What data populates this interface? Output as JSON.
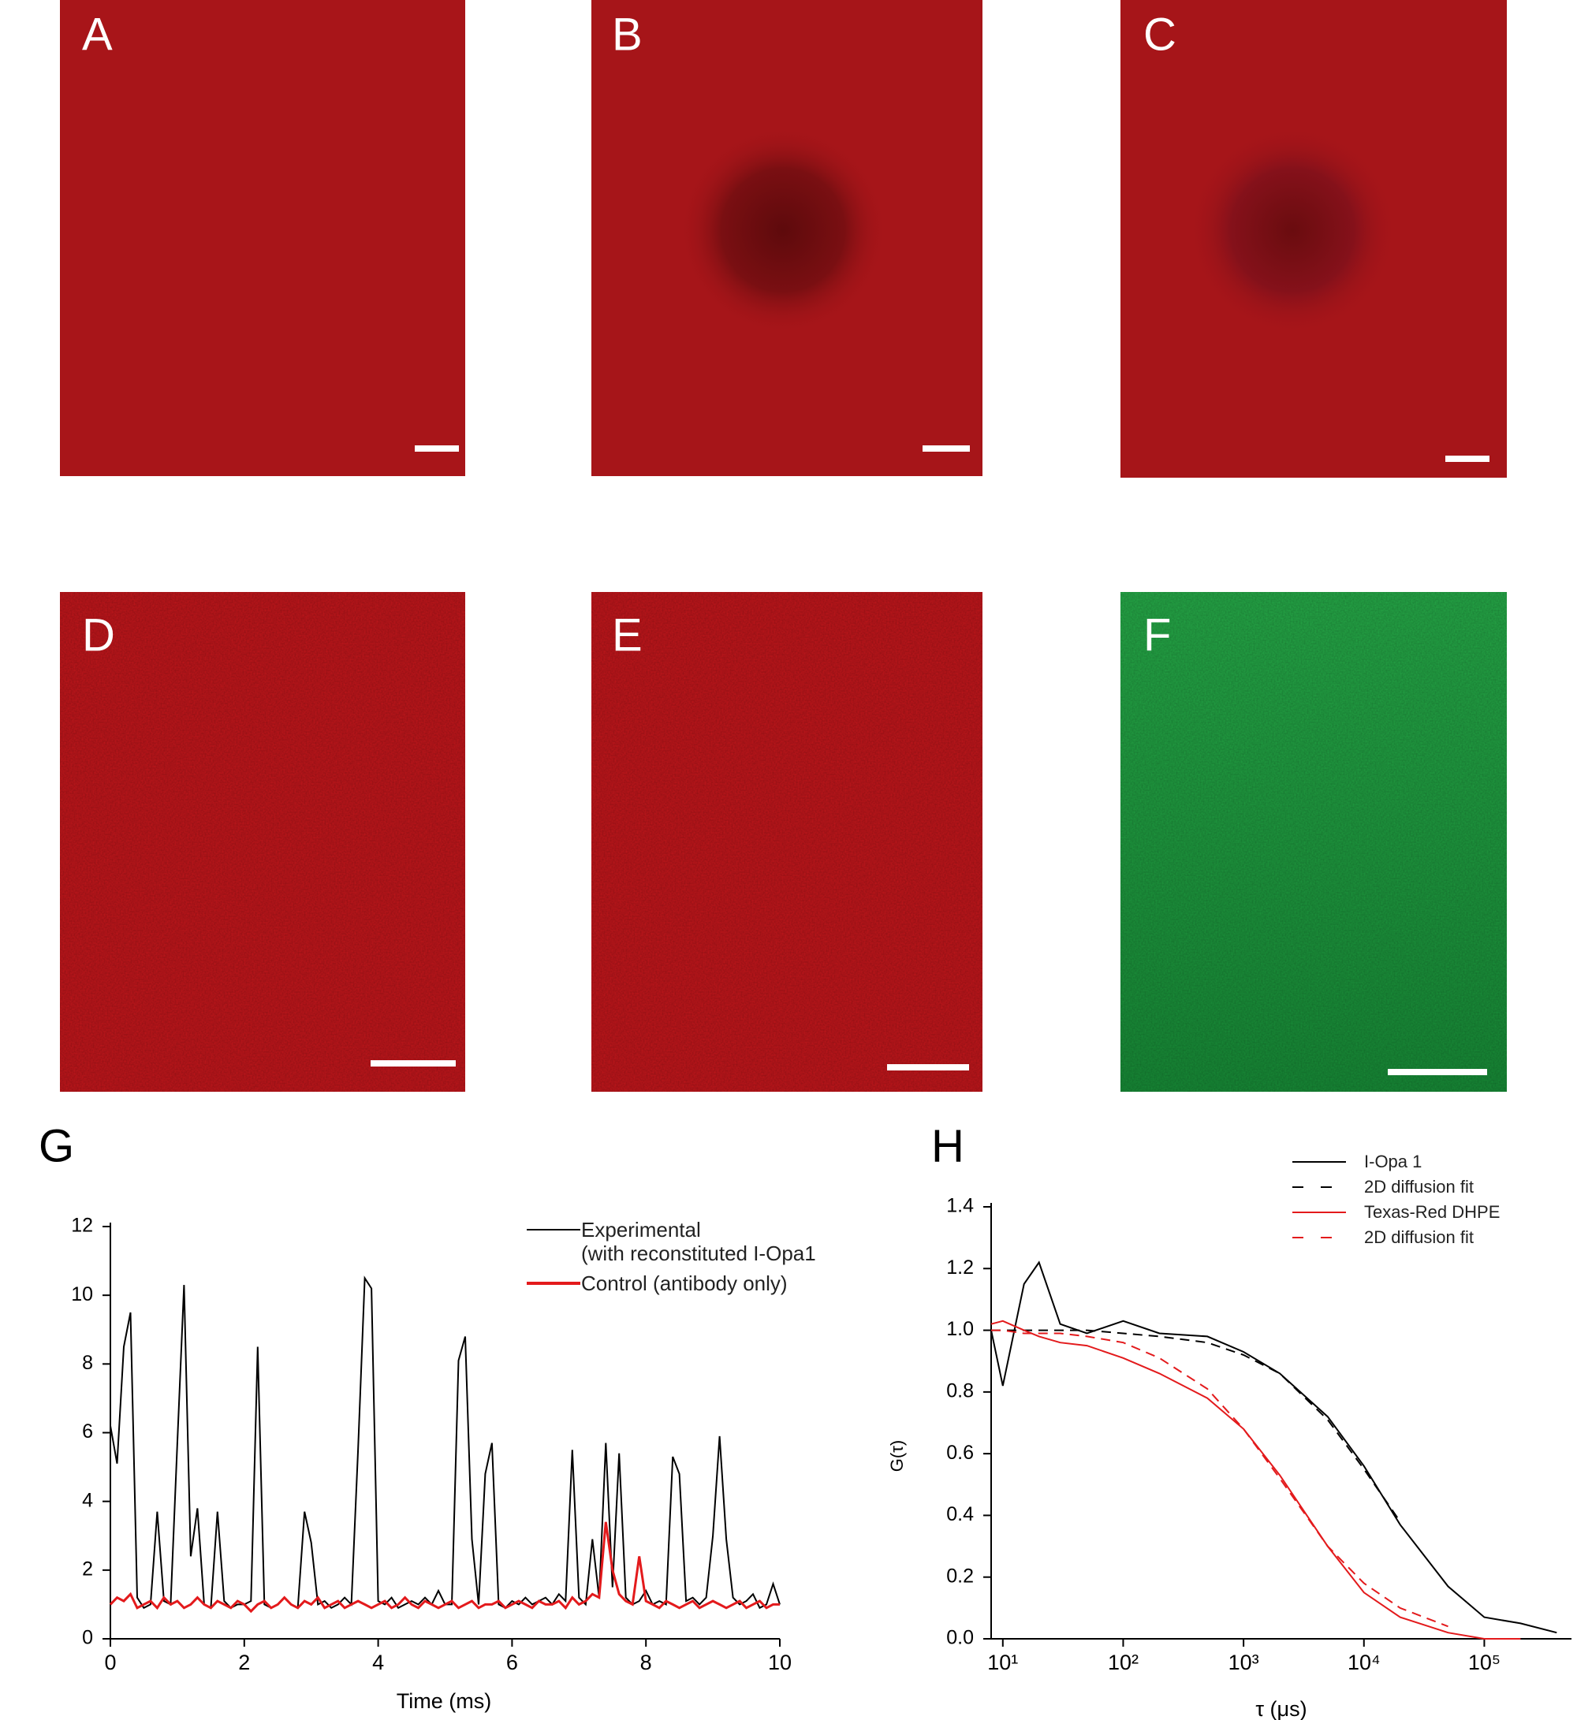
{
  "panel_labels": [
    "A",
    "B",
    "C",
    "D",
    "E",
    "F"
  ],
  "chart_data": [
    {
      "type": "line",
      "title": "G",
      "xlabel": "Time (ms)",
      "x": [
        0,
        0.1,
        0.2,
        0.3,
        0.4,
        0.5,
        0.6,
        0.7,
        0.8,
        0.9,
        1,
        1.1,
        1.2,
        1.3,
        1.4,
        1.5,
        1.6,
        1.7,
        1.8,
        1.9,
        2,
        2.1,
        2.2,
        2.3,
        2.4,
        2.5,
        2.6,
        2.7,
        2.8,
        2.9,
        3,
        3.1,
        3.2,
        3.3,
        3.4,
        3.5,
        3.6,
        3.7,
        3.8,
        3.9,
        4,
        4.1,
        4.2,
        4.3,
        4.4,
        4.5,
        4.6,
        4.7,
        4.8,
        4.9,
        5,
        5.1,
        5.2,
        5.3,
        5.4,
        5.5,
        5.6,
        5.7,
        5.8,
        5.9,
        6,
        6.1,
        6.2,
        6.3,
        6.4,
        6.5,
        6.6,
        6.7,
        6.8,
        6.9,
        7,
        7.1,
        7.2,
        7.3,
        7.4,
        7.5,
        7.6,
        7.7,
        7.8,
        7.9,
        8,
        8.1,
        8.2,
        8.3,
        8.4,
        8.5,
        8.6,
        8.7,
        8.8,
        8.9,
        9,
        9.1,
        9.2,
        9.3,
        9.4,
        9.5,
        9.6,
        9.7,
        9.8,
        9.9,
        10
      ],
      "series": [
        {
          "name": "Experimental\n(with reconstituted I-Opa1",
          "color": "#000000",
          "values": [
            6.2,
            5.1,
            8.5,
            9.5,
            1.2,
            0.9,
            1.0,
            3.7,
            1.1,
            1.0,
            5.7,
            10.3,
            2.4,
            3.8,
            1.0,
            0.9,
            3.7,
            1.1,
            0.9,
            1.0,
            1.0,
            1.1,
            8.5,
            1.0,
            0.9,
            1.0,
            1.2,
            1.0,
            0.9,
            3.7,
            2.8,
            1.0,
            1.1,
            0.9,
            1.0,
            1.2,
            1.0,
            5.5,
            10.5,
            10.2,
            1.1,
            1.0,
            1.2,
            0.9,
            1.0,
            1.1,
            1.0,
            1.2,
            1.0,
            1.4,
            1.0,
            1.0,
            8.1,
            8.8,
            2.9,
            1.0,
            4.8,
            5.7,
            1.0,
            0.9,
            1.1,
            1.0,
            1.2,
            1.0,
            1.1,
            1.2,
            1.0,
            1.3,
            1.1,
            5.5,
            1.2,
            1.0,
            2.9,
            1.2,
            5.7,
            1.5,
            5.4,
            1.2,
            1.0,
            1.1,
            1.4,
            1.0,
            1.1,
            1.0,
            5.3,
            4.8,
            1.1,
            1.2,
            1.0,
            1.2,
            3.0,
            5.9,
            2.9,
            1.2,
            1.0,
            1.1,
            1.3,
            0.9,
            1.0,
            1.6,
            1.0
          ]
        },
        {
          "name": "Control (antibody only)",
          "color": "#e31a1c",
          "values": [
            1.0,
            1.2,
            1.1,
            1.3,
            0.9,
            1.0,
            1.1,
            0.9,
            1.2,
            1.0,
            1.1,
            0.9,
            1.0,
            1.2,
            1.0,
            0.9,
            1.1,
            1.0,
            0.9,
            1.1,
            1.0,
            0.8,
            1.0,
            1.1,
            0.9,
            1.0,
            1.2,
            1.0,
            0.9,
            1.1,
            1.0,
            1.2,
            0.9,
            1.0,
            1.1,
            0.9,
            1.0,
            1.1,
            1.0,
            0.9,
            1.0,
            1.1,
            0.9,
            1.0,
            1.2,
            1.0,
            0.9,
            1.1,
            1.0,
            0.9,
            1.0,
            1.1,
            0.9,
            1.0,
            1.1,
            0.9,
            1.0,
            1.0,
            1.1,
            0.9,
            1.0,
            1.1,
            1.0,
            0.9,
            1.1,
            1.0,
            1.0,
            1.1,
            0.9,
            1.2,
            1.0,
            1.1,
            1.3,
            1.2,
            3.4,
            2.0,
            1.3,
            1.1,
            1.0,
            2.4,
            1.1,
            1.0,
            0.9,
            1.1,
            1.0,
            0.9,
            1.0,
            1.1,
            0.9,
            1.0,
            1.1,
            1.0,
            0.9,
            1.0,
            1.1,
            0.9,
            1.0,
            1.1,
            0.9,
            1.0,
            1.0
          ]
        }
      ],
      "xlim": [
        0,
        10
      ],
      "xticks": [
        0,
        2,
        4,
        6,
        8,
        10
      ],
      "ylim": [
        0,
        12
      ],
      "yticks": [
        0,
        2,
        4,
        6,
        8,
        10,
        12
      ],
      "log_x": false
    },
    {
      "type": "line",
      "title": "H",
      "xlabel": "τ (μs)",
      "ylabel": "G(τ)",
      "x": [
        8,
        10,
        15,
        20,
        30,
        50,
        100,
        200,
        500,
        1000,
        2000,
        5000,
        10000,
        20000,
        50000,
        100000,
        200000,
        400000
      ],
      "series": [
        {
          "name": "I-Opa 1",
          "color": "#000000",
          "dash": false,
          "values": [
            1.0,
            0.82,
            1.15,
            1.22,
            1.02,
            0.99,
            1.03,
            0.99,
            0.98,
            0.93,
            0.86,
            0.72,
            0.56,
            0.37,
            0.17,
            0.07,
            0.05,
            0.02
          ]
        },
        {
          "name": "2D diffusion fit",
          "color": "#000000",
          "dash": true,
          "values": [
            1.0,
            1.0,
            1.0,
            1.0,
            1.0,
            1.0,
            0.99,
            0.98,
            0.96,
            0.92,
            0.86,
            0.71,
            0.55,
            0.38,
            null,
            null,
            null,
            null
          ]
        },
        {
          "name": "Texas-Red DHPE",
          "color": "#e31a1c",
          "dash": false,
          "values": [
            1.02,
            1.03,
            1.0,
            0.98,
            0.96,
            0.95,
            0.91,
            0.86,
            0.78,
            0.68,
            0.53,
            0.3,
            0.15,
            0.07,
            0.02,
            0.0,
            0.0,
            null
          ]
        },
        {
          "name": "2D diffusion fit",
          "color": "#e31a1c",
          "dash": true,
          "values": [
            1.0,
            1.0,
            0.99,
            0.99,
            0.99,
            0.98,
            0.96,
            0.91,
            0.81,
            0.68,
            0.52,
            0.3,
            0.18,
            0.1,
            0.04,
            null,
            null,
            null
          ]
        }
      ],
      "xlim": [
        8,
        530000
      ],
      "xticks": [
        {
          "value": 10,
          "label": "10¹"
        },
        {
          "value": 100,
          "label": "10²"
        },
        {
          "value": 1000,
          "label": "10³"
        },
        {
          "value": 10000,
          "label": "10⁴"
        },
        {
          "value": 100000,
          "label": "10⁵"
        }
      ],
      "ylim": [
        0,
        1.4
      ],
      "yticks": [
        {
          "value": 0,
          "label": "0.0"
        },
        0.2,
        0.4,
        0.6,
        0.8,
        {
          "value": 1,
          "label": "1.0"
        },
        1.2,
        1.4
      ],
      "log_x": true
    }
  ]
}
